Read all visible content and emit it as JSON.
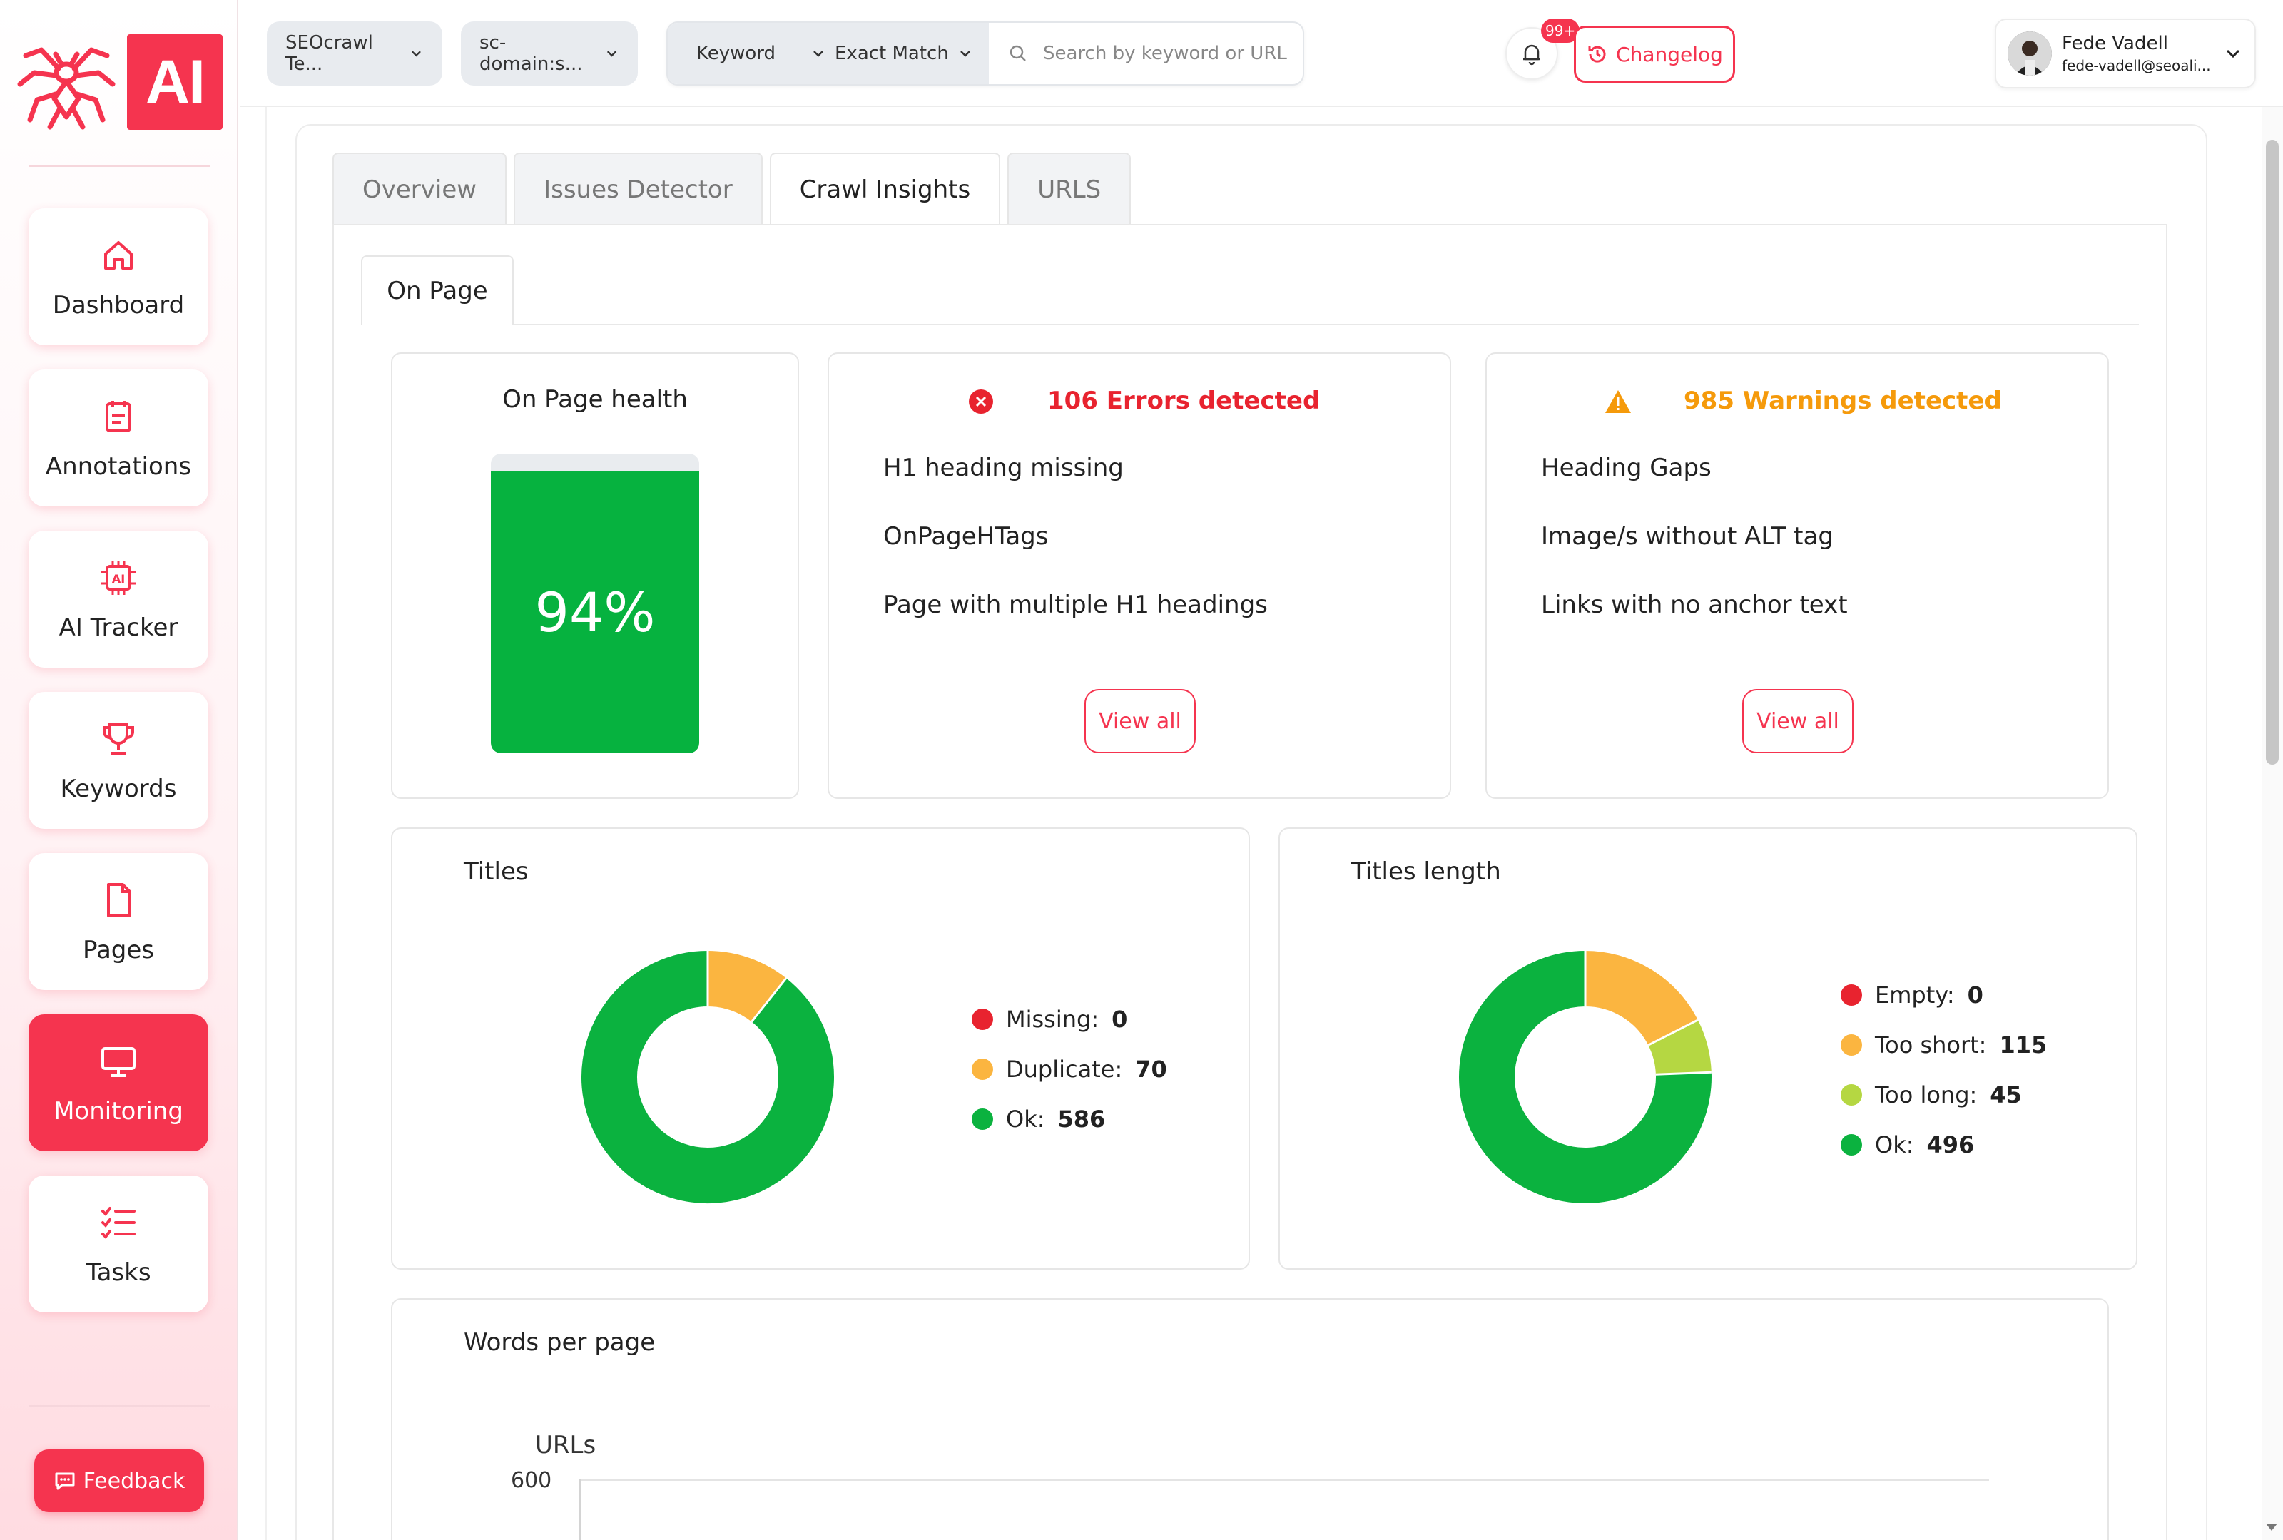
{
  "brand": {
    "logo_text": "AI",
    "accent": "#f5344f"
  },
  "sidebar": {
    "items": [
      {
        "label": "Dashboard",
        "icon": "home-icon"
      },
      {
        "label": "Annotations",
        "icon": "notepad-icon"
      },
      {
        "label": "AI Tracker",
        "icon": "ai-chip-icon"
      },
      {
        "label": "Keywords",
        "icon": "trophy-icon"
      },
      {
        "label": "Pages",
        "icon": "file-icon"
      },
      {
        "label": "Monitoring",
        "icon": "monitor-icon",
        "active": true
      },
      {
        "label": "Tasks",
        "icon": "checklist-icon"
      }
    ],
    "feedback_label": "Feedback"
  },
  "topbar": {
    "project_select": "SEOcrawl Te...",
    "domain_select": "sc-domain:s...",
    "filter_type": "Keyword",
    "match_type": "Exact Match",
    "search_placeholder": "Search by keyword or URL",
    "notifications_badge": "99+",
    "changelog_label": "Changelog",
    "user_name": "Fede Vadell",
    "user_email": "fede-vadell@seoali..."
  },
  "tabs": [
    {
      "label": "Overview"
    },
    {
      "label": "Issues Detector"
    },
    {
      "label": "Crawl Insights",
      "active": true
    },
    {
      "label": "URLS"
    }
  ],
  "subtab": {
    "label": "On Page"
  },
  "health": {
    "title": "On Page health",
    "value": "94%",
    "fraction": 0.94,
    "color": "#06b23f"
  },
  "errors": {
    "title": "106 Errors detected",
    "color": "#e8232f",
    "items": [
      "H1 heading missing",
      "OnPageHTags",
      "Page with multiple H1 headings"
    ],
    "view_all": "View all"
  },
  "warnings": {
    "title": "985 Warnings detected",
    "color": "#f59a0b",
    "items": [
      "Heading Gaps",
      "Image/s without ALT tag",
      "Links with no anchor text"
    ],
    "view_all": "View all"
  },
  "titles_chart": {
    "title": "Titles",
    "legend": [
      {
        "label": "Missing:",
        "value": "0",
        "color": "#e8232f"
      },
      {
        "label": "Duplicate:",
        "value": "70",
        "color": "#fbb540"
      },
      {
        "label": "Ok:",
        "value": "586",
        "color": "#0bb23f"
      }
    ]
  },
  "titles_length_chart": {
    "title": "Titles length",
    "legend": [
      {
        "label": "Empty:",
        "value": "0",
        "color": "#e8232f"
      },
      {
        "label": "Too short:",
        "value": "115",
        "color": "#fbb540"
      },
      {
        "label": "Too long:",
        "value": "45",
        "color": "#b5d742"
      },
      {
        "label": "Ok:",
        "value": "496",
        "color": "#0bb23f"
      }
    ]
  },
  "words_chart": {
    "title": "Words per page",
    "ylabel": "URLs",
    "ytick_top": "600"
  }
}
